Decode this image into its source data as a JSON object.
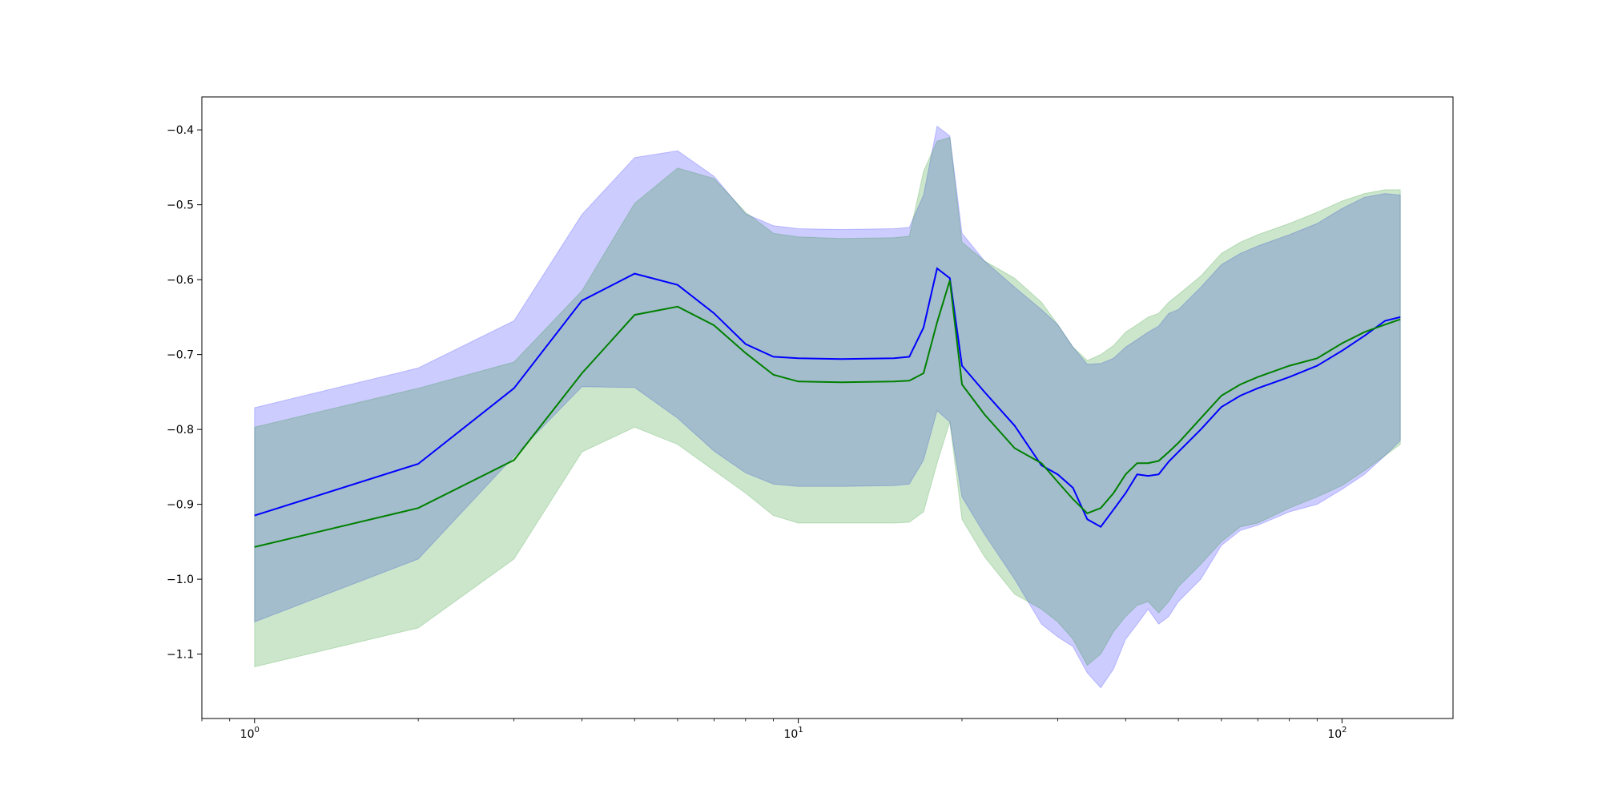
{
  "chart_data": {
    "type": "area",
    "title": "",
    "xlabel": "",
    "ylabel": "",
    "x_scale": "log",
    "xlim": [
      0.8,
      160
    ],
    "ylim": [
      -1.186,
      -0.356
    ],
    "grid": false,
    "x_ticks": [
      {
        "value": 1,
        "base": "10",
        "exp": "0"
      },
      {
        "value": 10,
        "base": "10",
        "exp": "1"
      },
      {
        "value": 100,
        "base": "10",
        "exp": "2"
      }
    ],
    "y_ticks": [
      {
        "value": -0.4,
        "label": "−0.4"
      },
      {
        "value": -0.5,
        "label": "−0.5"
      },
      {
        "value": -0.6,
        "label": "−0.6"
      },
      {
        "value": -0.7,
        "label": "−0.7"
      },
      {
        "value": -0.8,
        "label": "−0.8"
      },
      {
        "value": -0.9,
        "label": "−0.9"
      },
      {
        "value": -1.0,
        "label": "−1.0"
      },
      {
        "value": -1.1,
        "label": "−1.1"
      }
    ],
    "series": [
      {
        "color": "#0000ff",
        "band_fill": "#0000ff",
        "band_opacity": 0.2,
        "x": [
          1,
          2,
          3,
          4,
          5,
          6,
          7,
          8,
          9,
          10,
          12,
          15,
          16,
          17,
          18,
          19,
          20,
          22,
          25,
          28,
          30,
          32,
          34,
          36,
          38,
          40,
          42,
          44,
          46,
          48,
          50,
          55,
          60,
          65,
          70,
          80,
          90,
          100,
          110,
          120,
          128
        ],
        "mean": [
          -0.915,
          -0.846,
          -0.745,
          -0.628,
          -0.592,
          -0.607,
          -0.645,
          -0.686,
          -0.703,
          -0.705,
          -0.706,
          -0.705,
          -0.703,
          -0.664,
          -0.585,
          -0.598,
          -0.715,
          -0.75,
          -0.795,
          -0.848,
          -0.86,
          -0.878,
          -0.92,
          -0.93,
          -0.907,
          -0.885,
          -0.86,
          -0.862,
          -0.86,
          -0.843,
          -0.83,
          -0.8,
          -0.77,
          -0.755,
          -0.745,
          -0.73,
          -0.715,
          -0.695,
          -0.675,
          -0.655,
          -0.65
        ],
        "upper": [
          -0.771,
          -0.718,
          -0.655,
          -0.513,
          -0.437,
          -0.428,
          -0.462,
          -0.512,
          -0.528,
          -0.532,
          -0.533,
          -0.532,
          -0.53,
          -0.487,
          -0.395,
          -0.408,
          -0.538,
          -0.575,
          -0.61,
          -0.64,
          -0.66,
          -0.69,
          -0.713,
          -0.712,
          -0.705,
          -0.69,
          -0.68,
          -0.67,
          -0.662,
          -0.645,
          -0.64,
          -0.61,
          -0.58,
          -0.565,
          -0.555,
          -0.54,
          -0.525,
          -0.505,
          -0.49,
          -0.485,
          -0.487
        ],
        "lower": [
          -1.057,
          -0.973,
          -0.836,
          -0.743,
          -0.744,
          -0.785,
          -0.829,
          -0.858,
          -0.873,
          -0.876,
          -0.876,
          -0.875,
          -0.873,
          -0.841,
          -0.775,
          -0.79,
          -0.89,
          -0.94,
          -1.0,
          -1.06,
          -1.077,
          -1.09,
          -1.125,
          -1.145,
          -1.12,
          -1.08,
          -1.06,
          -1.04,
          -1.06,
          -1.05,
          -1.03,
          -1.0,
          -0.955,
          -0.935,
          -0.928,
          -0.91,
          -0.9,
          -0.88,
          -0.86,
          -0.835,
          -0.815
        ]
      },
      {
        "color": "#008000",
        "band_fill": "#008000",
        "band_opacity": 0.2,
        "x": [
          1,
          2,
          3,
          4,
          5,
          6,
          7,
          8,
          9,
          10,
          12,
          15,
          16,
          17,
          18,
          19,
          20,
          22,
          25,
          28,
          30,
          32,
          34,
          36,
          38,
          40,
          42,
          44,
          46,
          48,
          50,
          55,
          60,
          65,
          70,
          80,
          90,
          100,
          110,
          120,
          128
        ],
        "mean": [
          -0.957,
          -0.905,
          -0.841,
          -0.725,
          -0.647,
          -0.636,
          -0.661,
          -0.698,
          -0.727,
          -0.736,
          -0.737,
          -0.736,
          -0.735,
          -0.725,
          -0.657,
          -0.601,
          -0.74,
          -0.78,
          -0.825,
          -0.845,
          -0.87,
          -0.893,
          -0.912,
          -0.905,
          -0.885,
          -0.86,
          -0.845,
          -0.845,
          -0.842,
          -0.83,
          -0.818,
          -0.785,
          -0.755,
          -0.74,
          -0.73,
          -0.715,
          -0.705,
          -0.685,
          -0.67,
          -0.66,
          -0.653
        ],
        "upper": [
          -0.797,
          -0.745,
          -0.71,
          -0.615,
          -0.498,
          -0.451,
          -0.465,
          -0.51,
          -0.538,
          -0.543,
          -0.545,
          -0.544,
          -0.542,
          -0.455,
          -0.415,
          -0.41,
          -0.55,
          -0.575,
          -0.598,
          -0.63,
          -0.66,
          -0.69,
          -0.708,
          -0.7,
          -0.688,
          -0.67,
          -0.66,
          -0.65,
          -0.645,
          -0.63,
          -0.62,
          -0.595,
          -0.565,
          -0.55,
          -0.54,
          -0.525,
          -0.51,
          -0.495,
          -0.485,
          -0.48,
          -0.48
        ],
        "lower": [
          -1.117,
          -1.065,
          -0.973,
          -0.83,
          -0.797,
          -0.82,
          -0.855,
          -0.885,
          -0.915,
          -0.925,
          -0.925,
          -0.925,
          -0.924,
          -0.91,
          -0.845,
          -0.79,
          -0.92,
          -0.97,
          -1.02,
          -1.04,
          -1.057,
          -1.08,
          -1.115,
          -1.1,
          -1.07,
          -1.05,
          -1.035,
          -1.03,
          -1.045,
          -1.03,
          -1.01,
          -0.98,
          -0.95,
          -0.93,
          -0.925,
          -0.905,
          -0.89,
          -0.875,
          -0.855,
          -0.835,
          -0.82
        ]
      }
    ]
  }
}
